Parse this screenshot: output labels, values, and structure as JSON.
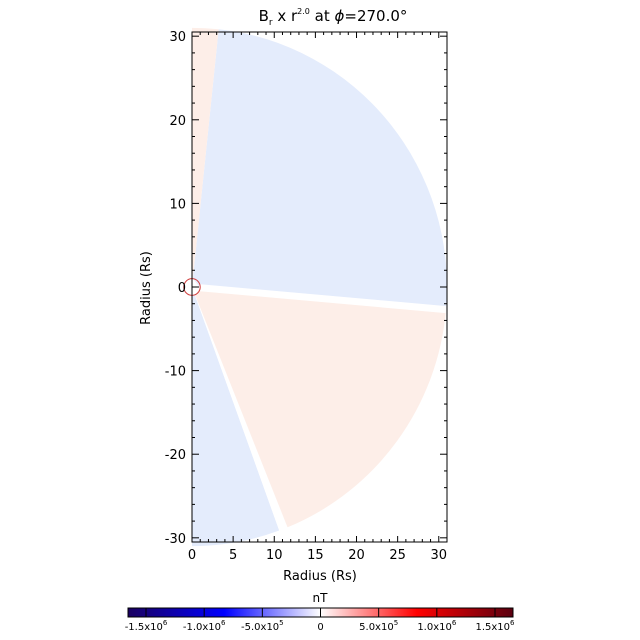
{
  "chart_data": {
    "type": "heatmap",
    "title": {
      "main": "B",
      "main_sub": "r",
      "mid": " x r",
      "exp": "2.0",
      "tail": " at ",
      "phi": "ϕ",
      "value": "=270.0°"
    },
    "xlabel": "Radius (Rs)",
    "ylabel": "Radius (Rs)",
    "xlim": [
      0,
      31
    ],
    "ylim": [
      -30.5,
      30.5
    ],
    "x_ticks": [
      "0",
      "5",
      "10",
      "15",
      "20",
      "25",
      "30"
    ],
    "y_ticks": [
      "30",
      "20",
      "10",
      "0",
      "-10",
      "-20",
      "-30"
    ],
    "colorbar": {
      "label": "nT",
      "range": [
        -1500000.0,
        1500000.0
      ],
      "tick_labels": [
        {
          "mant": "-1.5x10",
          "exp": "6"
        },
        {
          "mant": "-1.0x10",
          "exp": "6"
        },
        {
          "mant": "-5.0x10",
          "exp": "5"
        },
        {
          "mant": "0",
          "exp": ""
        },
        {
          "mant": "5.0x10",
          "exp": "5"
        },
        {
          "mant": "1.0x10",
          "exp": "6"
        },
        {
          "mant": "1.5x10",
          "exp": "6"
        }
      ],
      "colors": [
        "#1a0060",
        "#0000ff",
        "#ffffff",
        "#ff0000",
        "#5a0010"
      ]
    },
    "regions": {
      "outer_radius": 31,
      "inner_radius": 1,
      "polar_thin_positive_angle_deg": [
        84,
        90
      ],
      "north_negative_angle_deg": [
        -5,
        84
      ],
      "current_sheet_angle_deg": -5,
      "south_positive_angle_deg": [
        -68,
        -5
      ],
      "south_thin_gap_angle_deg": [
        -70,
        -68
      ],
      "south_negative_angle_deg": [
        -90,
        -70
      ],
      "colors": {
        "weak_positive": "#fdeee8",
        "weak_negative": "#e4ecfc",
        "near_zero": "#ffffff"
      }
    }
  }
}
